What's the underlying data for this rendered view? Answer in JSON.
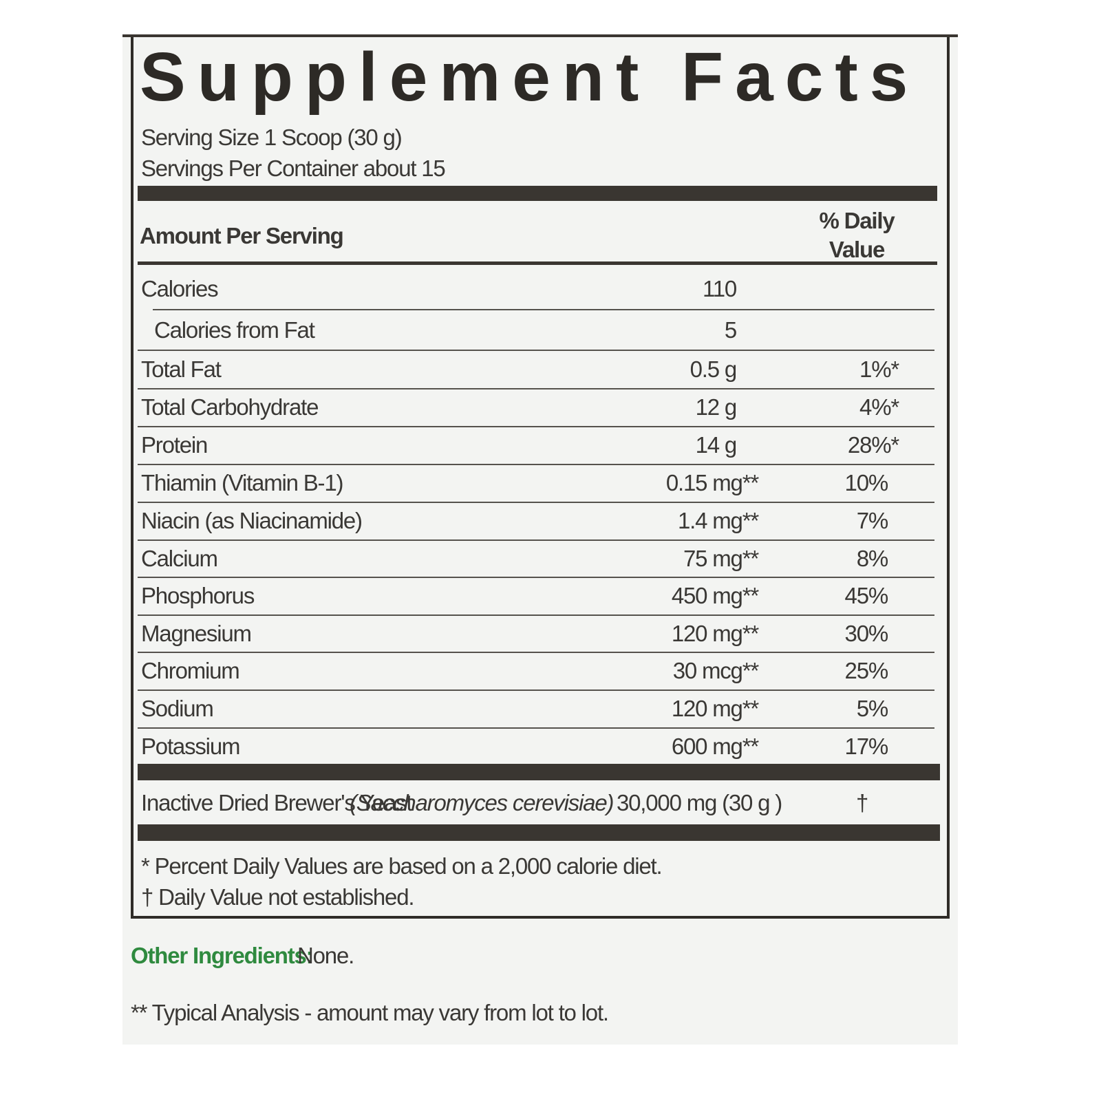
{
  "title": "Supplement Facts",
  "serving_size": "Serving Size 1 Scoop (30 g)",
  "servings_per_container": "Servings Per Container about 15",
  "header": {
    "amount": "Amount Per Serving",
    "daily_value": "% Daily Value"
  },
  "rows": [
    {
      "name": "Calories",
      "amount": "110"
    },
    {
      "name": "Calories from Fat",
      "amount": "5"
    },
    {
      "name": "Total Fat",
      "amount": "0.5 g",
      "dv": "1%*"
    },
    {
      "name": "Total Carbohydrate",
      "amount": "12 g",
      "dv": "4%*"
    },
    {
      "name": "Protein",
      "amount": "14 g",
      "dv": "28%*"
    },
    {
      "name": "Thiamin (Vitamin B-1)",
      "amount": "0.15 mg**",
      "dv": "10%"
    },
    {
      "name": "Niacin (as Niacinamide)",
      "amount": "1.4 mg**",
      "dv": "7%"
    },
    {
      "name": "Calcium",
      "amount": "75 mg**",
      "dv": "8%"
    },
    {
      "name": "Phosphorus",
      "amount": "450 mg**",
      "dv": "45%"
    },
    {
      "name": "Magnesium",
      "amount": "120 mg**",
      "dv": "30%"
    },
    {
      "name": "Chromium",
      "amount": "30 mcg**",
      "dv": "25%"
    },
    {
      "name": "Sodium",
      "amount": "120 mg**",
      "dv": "5%"
    },
    {
      "name": "Potassium",
      "amount": "600 mg**",
      "dv": "17%"
    }
  ],
  "ingredient": {
    "name": "Inactive Dried Brewer's Yeast",
    "latin": "(Saccharomyces cerevisiae)",
    "amount": "30,000 mg (30 g )",
    "dv": "†"
  },
  "footnotes": [
    "* Percent Daily Values are based on a 2,000 calorie diet.",
    "† Daily Value not established."
  ],
  "other_ingredients": {
    "label": "Other Ingredients:",
    "value": "None."
  },
  "typical_analysis": "** Typical Analysis - amount may vary from lot to lot."
}
